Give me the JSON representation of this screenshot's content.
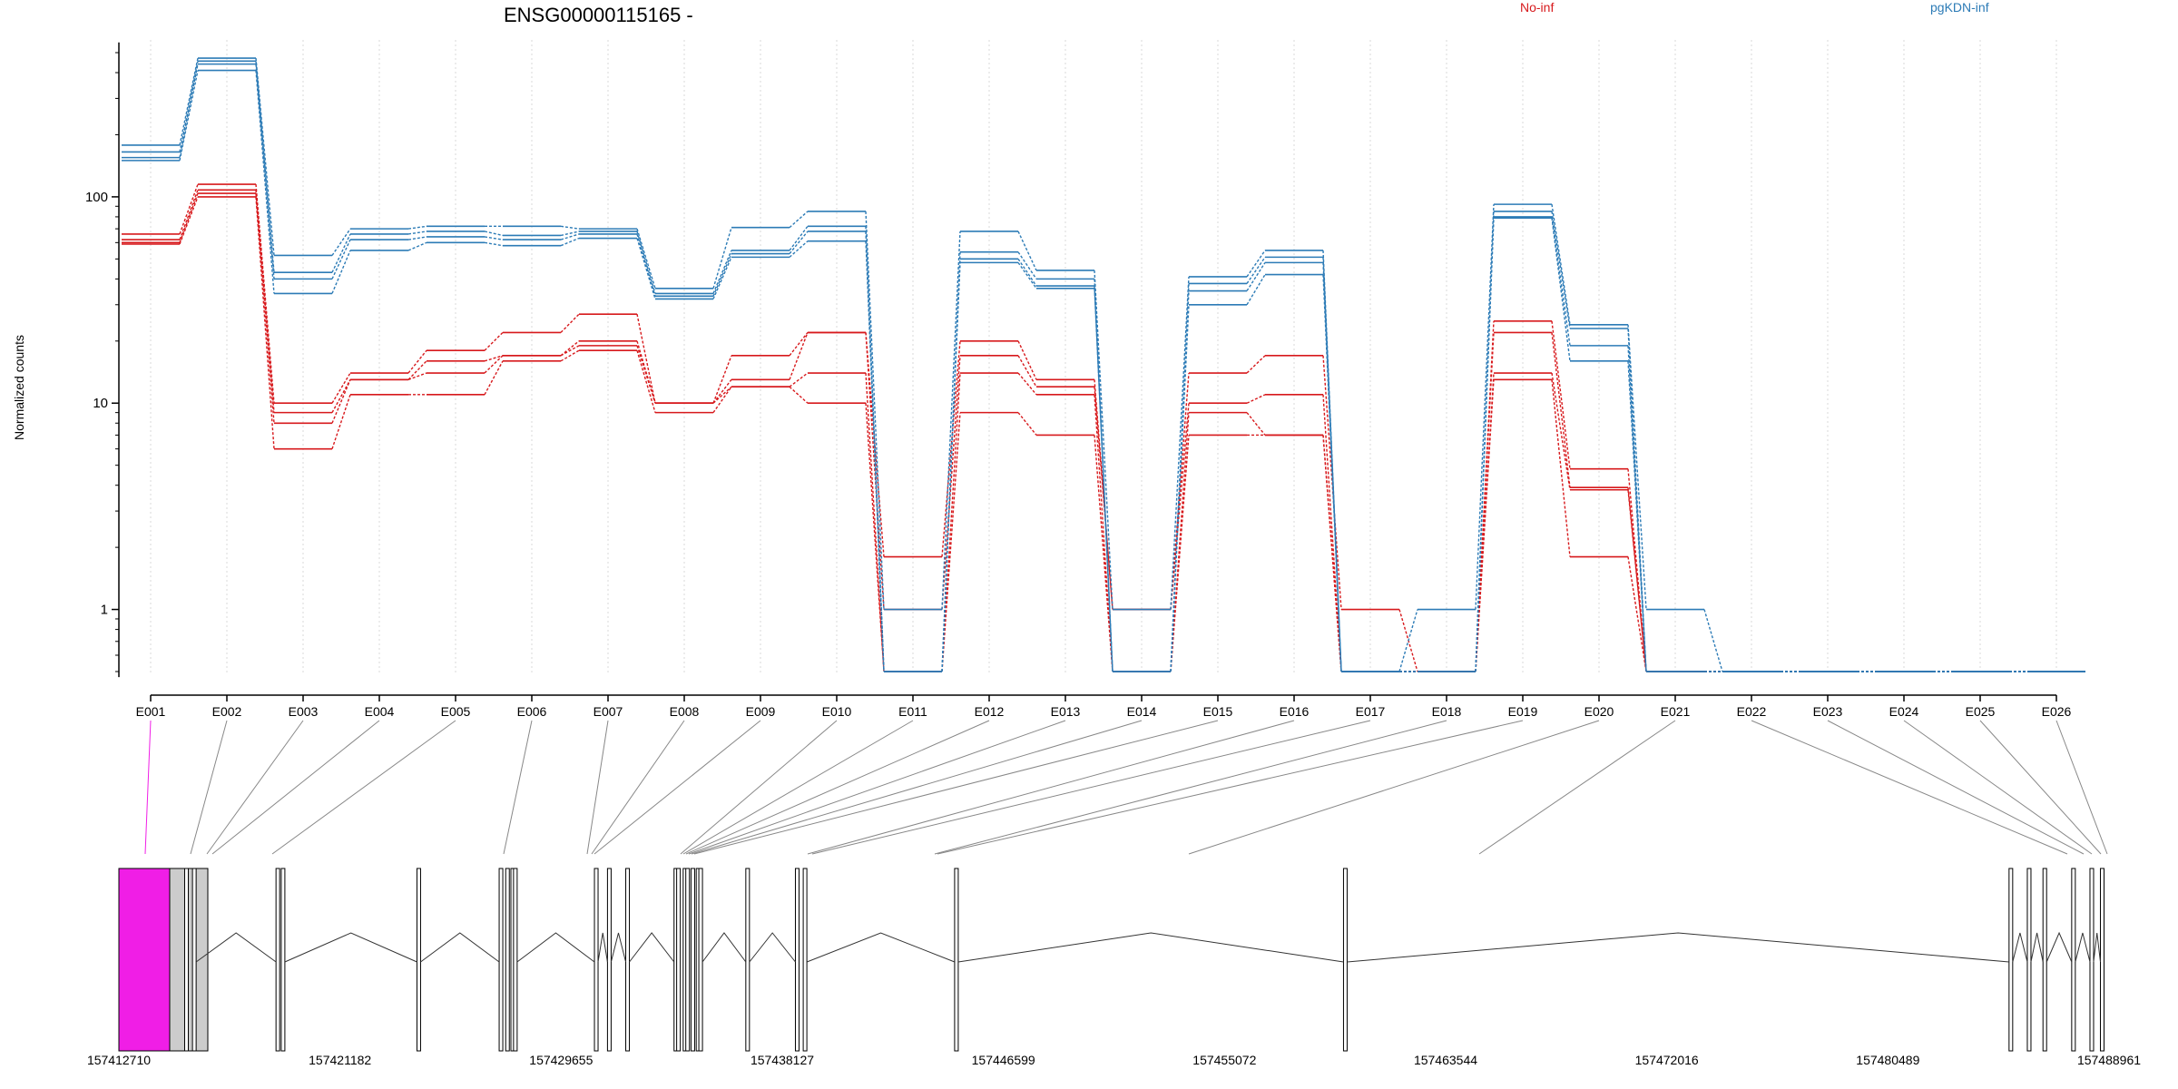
{
  "chart_data": {
    "type": "line",
    "title": "ENSG00000115165 -",
    "ylabel": "Normalized counts",
    "xlabel": "",
    "y_scale": "log",
    "y_ticks": [
      1,
      10,
      100
    ],
    "y_tick_labels": [
      "1",
      "10",
      "100"
    ],
    "ylim": [
      0.5,
      600
    ],
    "grid": "vertical dotted lines at each exon",
    "legend": [
      {
        "label": "No-inf",
        "color": "#d7191c"
      },
      {
        "label": "pgKDN-inf",
        "color": "#2c7bb6"
      }
    ],
    "categories": [
      "E001",
      "E002",
      "E003",
      "E004",
      "E005",
      "E006",
      "E007",
      "E008",
      "E009",
      "E010",
      "E011",
      "E012",
      "E013",
      "E014",
      "E015",
      "E016",
      "E017",
      "E018",
      "E019",
      "E020",
      "E021",
      "E022",
      "E023",
      "E024",
      "E025",
      "E026"
    ],
    "series": [
      {
        "group": "No-inf",
        "values": [
          66,
          115,
          10,
          14,
          18,
          22,
          27,
          10,
          17,
          22,
          1.8,
          20,
          13,
          1.0,
          14,
          17,
          1.0,
          0.5,
          25,
          4.8,
          0.5,
          0.5,
          0.5,
          0.5,
          0.5,
          0.5
        ]
      },
      {
        "group": "No-inf",
        "values": [
          62,
          108,
          9,
          13,
          16,
          17,
          20,
          10,
          13,
          22,
          1.0,
          17,
          12,
          1.0,
          10,
          11,
          0.5,
          0.5,
          22,
          3.9,
          0.5,
          0.5,
          0.5,
          0.5,
          0.5,
          0.5
        ]
      },
      {
        "group": "No-inf",
        "values": [
          60,
          104,
          8,
          13,
          14,
          17,
          19,
          10,
          12,
          14,
          0.5,
          14,
          11,
          0.5,
          9,
          7,
          0.5,
          0.5,
          14,
          3.8,
          0.5,
          0.5,
          0.5,
          0.5,
          0.5,
          0.5
        ]
      },
      {
        "group": "No-inf",
        "values": [
          59,
          100,
          6,
          11,
          11,
          16,
          18,
          9,
          12,
          10,
          0.5,
          9,
          7,
          0.5,
          7,
          7,
          0.5,
          0.5,
          13,
          1.8,
          0.5,
          0.5,
          0.5,
          0.5,
          0.5,
          0.5
        ]
      },
      {
        "group": "pgKDN-inf",
        "values": [
          178,
          470,
          52,
          70,
          72,
          72,
          70,
          36,
          71,
          85,
          1.0,
          68,
          44,
          1.0,
          41,
          55,
          0.5,
          1.0,
          92,
          24,
          1.0,
          0.5,
          0.5,
          0.5,
          0.5,
          0.5
        ]
      },
      {
        "group": "pgKDN-inf",
        "values": [
          165,
          455,
          43,
          66,
          68,
          65,
          68,
          34,
          55,
          72,
          0.5,
          54,
          40,
          0.5,
          38,
          51,
          0.5,
          0.5,
          85,
          23,
          0.5,
          0.5,
          0.5,
          0.5,
          0.5,
          0.5
        ]
      },
      {
        "group": "pgKDN-inf",
        "values": [
          155,
          440,
          40,
          62,
          64,
          62,
          66,
          33,
          53,
          68,
          0.5,
          50,
          37,
          0.5,
          35,
          48,
          0.5,
          0.5,
          80,
          19,
          0.5,
          0.5,
          0.5,
          0.5,
          0.5,
          0.5
        ]
      },
      {
        "group": "pgKDN-inf",
        "values": [
          150,
          410,
          34,
          55,
          60,
          58,
          63,
          32,
          51,
          61,
          0.5,
          48,
          36,
          0.5,
          30,
          42,
          0.5,
          0.5,
          79,
          16,
          0.5,
          0.5,
          0.5,
          0.5,
          0.5,
          0.5
        ]
      }
    ],
    "gene_model": {
      "coordinate_labels": [
        "157412710",
        "157421182",
        "157429655",
        "157438127",
        "157446599",
        "157455072",
        "157463544",
        "157472016",
        "157480489",
        "157488961"
      ],
      "coord_min": 157412710,
      "coord_max": 157488961,
      "exon_coords": [
        157413500,
        157415300,
        157415600,
        157418800,
        157419000,
        157424200,
        157427350,
        157427600,
        157427800,
        157427900,
        157431000,
        157431500,
        157432200,
        157434050,
        157434150,
        157434400,
        157434500,
        157434700,
        157434900,
        157435000,
        157436800,
        157438700,
        157439000,
        157444800,
        157459700,
        157485200,
        157485900,
        157486500,
        157487600,
        157488300,
        157488700
      ]
    },
    "colors": {
      "no_inf": "#d7191c",
      "pgkdn_inf": "#2c7bb6",
      "highlight_exon": "#f01ee6",
      "utr_box": "#cccccc"
    }
  }
}
